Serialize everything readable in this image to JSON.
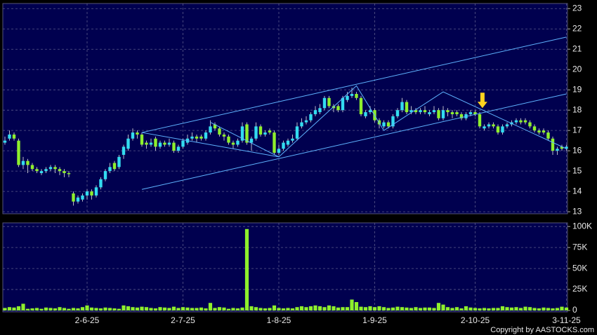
{
  "chart_data": {
    "type": "candlestick",
    "categories": [
      null,
      null,
      null,
      null,
      null,
      null,
      null,
      null,
      null,
      null,
      null,
      null,
      null,
      null,
      null,
      null,
      null,
      null,
      "2-6-25",
      null,
      null,
      null,
      null,
      null,
      null,
      null,
      null,
      null,
      null,
      null,
      null,
      null,
      null,
      null,
      null,
      null,
      null,
      null,
      null,
      "2-7-25",
      null,
      null,
      null,
      null,
      null,
      null,
      null,
      null,
      null,
      null,
      null,
      null,
      null,
      null,
      null,
      null,
      null,
      null,
      null,
      null,
      "1-8-25",
      null,
      null,
      null,
      null,
      null,
      null,
      null,
      null,
      null,
      null,
      null,
      null,
      null,
      null,
      null,
      null,
      null,
      null,
      null,
      null,
      "1-9-25",
      null,
      null,
      null,
      null,
      null,
      null,
      null,
      null,
      null,
      null,
      null,
      null,
      null,
      null,
      null,
      null,
      null,
      null,
      null,
      null,
      null,
      "2-10-25",
      null,
      null,
      null,
      null,
      null,
      null,
      null,
      null,
      null,
      null,
      null,
      null,
      null,
      null,
      null,
      null,
      null,
      null,
      null,
      "3-11-25"
    ],
    "open": [
      16.4,
      16.6,
      16.8,
      16.5,
      15.3,
      15.5,
      15.3,
      15.1,
      14.9,
      15.0,
      15.1,
      15.2,
      15.1,
      15.0,
      14.9,
      13.9,
      13.5,
      13.6,
      13.8,
      14.0,
      13.8,
      14.2,
      14.6,
      15.0,
      15.4,
      15.2,
      15.8,
      16.1,
      16.6,
      16.9,
      16.8,
      16.4,
      16.3,
      16.6,
      16.2,
      16.4,
      16.3,
      16.4,
      16.0,
      16.2,
      16.4,
      16.6,
      16.7,
      16.7,
      16.6,
      16.9,
      17.3,
      17.1,
      16.8,
      16.7,
      16.4,
      16.3,
      16.5,
      17.3,
      16.4,
      16.6,
      17.2,
      16.8,
      17.0,
      16.9,
      15.9,
      16.1,
      16.3,
      16.5,
      16.6,
      17.2,
      17.4,
      17.5,
      17.8,
      17.9,
      18.1,
      18.6,
      18.2,
      18.2,
      18.0,
      18.5,
      18.7,
      18.8,
      18.6,
      17.7,
      17.9,
      18.0,
      17.5,
      17.2,
      17.4,
      17.2,
      17.7,
      18.0,
      18.4,
      17.9,
      18.0,
      17.9,
      18.0,
      17.8,
      17.9,
      18.0,
      17.6,
      18.0,
      17.9,
      17.9,
      17.8,
      17.6,
      17.8,
      17.9,
      17.8,
      17.1,
      17.2,
      17.3,
      17.2,
      16.9,
      17.2,
      17.3,
      17.4,
      17.5,
      17.5,
      17.4,
      17.2,
      17.0,
      17.0,
      16.9,
      16.6,
      16.0,
      16.2,
      16.1
    ],
    "high": [
      16.7,
      17.0,
      16.9,
      16.6,
      15.7,
      15.6,
      15.4,
      15.2,
      15.1,
      15.2,
      15.3,
      15.3,
      15.2,
      15.1,
      15.0,
      14.0,
      13.8,
      13.9,
      14.1,
      14.1,
      14.3,
      14.7,
      15.1,
      15.4,
      15.5,
      15.8,
      16.3,
      16.8,
      17.1,
      17.0,
      16.9,
      16.5,
      16.6,
      16.7,
      16.5,
      16.5,
      16.6,
      16.5,
      16.3,
      16.6,
      16.8,
      16.9,
      16.8,
      16.8,
      17.0,
      17.5,
      17.4,
      17.2,
      16.9,
      16.8,
      16.5,
      16.6,
      17.4,
      17.4,
      16.7,
      17.4,
      17.3,
      17.0,
      17.1,
      17.0,
      16.3,
      16.5,
      16.6,
      16.8,
      17.4,
      17.6,
      17.7,
      17.9,
      18.2,
      18.3,
      18.7,
      18.7,
      18.3,
      18.3,
      18.7,
      18.9,
      19.1,
      18.9,
      18.7,
      18.0,
      18.2,
      18.1,
      17.6,
      17.5,
      17.5,
      17.8,
      18.1,
      18.6,
      18.5,
      18.2,
      18.1,
      18.1,
      18.2,
      18.0,
      18.2,
      18.1,
      18.2,
      18.1,
      18.0,
      18.0,
      17.9,
      17.9,
      18.0,
      18.0,
      17.9,
      17.3,
      17.4,
      17.4,
      17.3,
      17.3,
      17.4,
      17.5,
      17.6,
      17.6,
      17.6,
      17.5,
      17.3,
      17.1,
      17.1,
      17.0,
      16.7,
      16.2,
      16.3,
      16.3
    ],
    "low": [
      16.3,
      16.5,
      16.5,
      15.2,
      15.1,
      14.9,
      15.0,
      14.9,
      14.8,
      14.9,
      15.0,
      14.9,
      14.8,
      14.7,
      14.7,
      13.3,
      13.4,
      13.5,
      13.6,
      13.6,
      13.7,
      14.1,
      14.5,
      14.9,
      15.0,
      15.1,
      15.6,
      16.0,
      16.5,
      16.6,
      16.2,
      16.1,
      16.2,
      16.0,
      16.1,
      16.2,
      16.2,
      15.9,
      15.9,
      16.1,
      16.3,
      16.5,
      16.4,
      16.5,
      16.5,
      16.8,
      17.0,
      16.7,
      16.5,
      16.3,
      16.1,
      16.2,
      16.4,
      16.3,
      16.0,
      16.5,
      16.7,
      16.7,
      16.8,
      15.8,
      15.8,
      16.0,
      16.2,
      16.4,
      16.5,
      17.1,
      17.3,
      17.4,
      17.7,
      17.8,
      18.0,
      18.1,
      17.9,
      17.9,
      17.9,
      18.4,
      18.6,
      18.5,
      17.7,
      17.6,
      17.8,
      17.4,
      17.1,
      17.1,
      17.1,
      17.1,
      17.6,
      17.9,
      17.8,
      17.8,
      17.8,
      17.8,
      17.8,
      17.7,
      17.8,
      17.5,
      17.5,
      17.7,
      17.6,
      17.7,
      17.5,
      17.5,
      17.7,
      17.7,
      17.1,
      17.0,
      17.1,
      17.1,
      16.8,
      16.8,
      17.1,
      17.2,
      17.3,
      17.3,
      17.3,
      17.1,
      16.9,
      16.8,
      16.8,
      16.5,
      15.8,
      15.8,
      16.0,
      16.0
    ],
    "close": [
      16.5,
      16.8,
      16.6,
      15.3,
      15.5,
      15.3,
      15.1,
      15.0,
      15.0,
      15.1,
      15.2,
      15.1,
      15.0,
      14.9,
      14.85,
      13.5,
      13.7,
      13.8,
      14.0,
      13.8,
      14.2,
      14.6,
      15.0,
      15.2,
      15.1,
      15.7,
      16.2,
      16.6,
      16.9,
      16.8,
      16.3,
      16.3,
      16.4,
      16.2,
      16.4,
      16.3,
      16.4,
      16.0,
      16.2,
      16.5,
      16.6,
      16.7,
      16.6,
      16.6,
      16.9,
      17.2,
      17.1,
      16.8,
      16.7,
      16.4,
      16.3,
      16.5,
      17.2,
      16.4,
      16.6,
      17.2,
      16.8,
      16.9,
      16.9,
      15.9,
      16.1,
      16.4,
      16.5,
      16.6,
      17.2,
      17.4,
      17.5,
      17.8,
      18.0,
      18.1,
      18.6,
      18.2,
      18.1,
      18.0,
      18.6,
      18.7,
      18.8,
      18.6,
      17.8,
      17.9,
      18.0,
      17.5,
      17.3,
      17.4,
      17.2,
      17.7,
      18.0,
      18.4,
      17.9,
      18.0,
      17.9,
      18.0,
      17.9,
      17.9,
      18.0,
      17.6,
      18.0,
      17.9,
      17.8,
      17.8,
      17.6,
      17.8,
      17.9,
      17.8,
      17.2,
      17.2,
      17.3,
      17.2,
      16.9,
      17.2,
      17.3,
      17.4,
      17.5,
      17.4,
      17.4,
      17.2,
      17.0,
      16.9,
      16.9,
      16.6,
      16.0,
      16.1,
      16.1,
      16.2
    ],
    "volume": [
      3000,
      4000,
      3500,
      5000,
      8000,
      2000,
      2500,
      3000,
      2000,
      3500,
      3000,
      2500,
      4000,
      3000,
      2000,
      3000,
      2500,
      4000,
      6000,
      3500,
      3000,
      2500,
      3500,
      3000,
      2500,
      2000,
      6000,
      5000,
      4000,
      3500,
      4500,
      4000,
      3000,
      2500,
      4000,
      3500,
      3000,
      4500,
      3000,
      4000,
      3500,
      3000,
      3000,
      3500,
      2500,
      9000,
      3000,
      4000,
      3500,
      2000,
      3000,
      2500,
      3500,
      97000,
      5000,
      4000,
      3000,
      2500,
      3000,
      6000,
      3000,
      2500,
      3000,
      2500,
      4000,
      5000,
      4000,
      5000,
      6000,
      5000,
      4000,
      6000,
      5000,
      3500,
      4000,
      4000,
      13000,
      10000,
      4500,
      4000,
      5000,
      4000,
      5000,
      4000,
      3000,
      3500,
      4500,
      4000,
      3500,
      3000,
      4000,
      3000,
      3500,
      3500,
      3000,
      9000,
      7000,
      4000,
      3000,
      4000,
      2500,
      5000,
      3500,
      3000,
      2500,
      3000,
      2500,
      3000,
      3000,
      5000,
      4000,
      3500,
      4000,
      3000,
      4500,
      4000,
      3000,
      2500,
      3500,
      3000,
      2500,
      3000,
      4500,
      3500
    ],
    "up_color": "#33dcf0",
    "down_color": "#8ef02c",
    "wick_color": "#b8b8c8",
    "volume_color": "#8ef02c",
    "ylim": [
      12.9,
      23.25
    ],
    "yticks": [
      13,
      14,
      15,
      16,
      17,
      18,
      19,
      20,
      21,
      22,
      23
    ],
    "volume_ylim": [
      0,
      106000
    ],
    "volume_yticks": [
      0,
      {
        "value": 25000,
        "label": "25K"
      },
      {
        "value": 50000,
        "label": "50K"
      },
      {
        "value": 75000,
        "label": "75K"
      },
      {
        "value": 100000,
        "label": "100K"
      }
    ],
    "grid": true,
    "trendlines": [
      {
        "x": [
          30,
          123
        ],
        "y": [
          16.9,
          21.6
        ]
      },
      {
        "x": [
          30,
          123
        ],
        "y": [
          14.1,
          18.8
        ]
      },
      {
        "x": [
          30,
          60,
          77,
          83,
          96,
          123
        ],
        "y": [
          16.9,
          15.7,
          19.2,
          17.0,
          18.9,
          16.1
        ]
      },
      {
        "x": [
          45,
          60
        ],
        "y": [
          17.4,
          15.7
        ]
      }
    ],
    "trendline_color": "#5fb4ff",
    "marker": {
      "x": 104.6,
      "price": 18.1,
      "color": "#ffd21e"
    }
  },
  "footer": {
    "copyright": "Copyright by AASTOCKS.com"
  }
}
